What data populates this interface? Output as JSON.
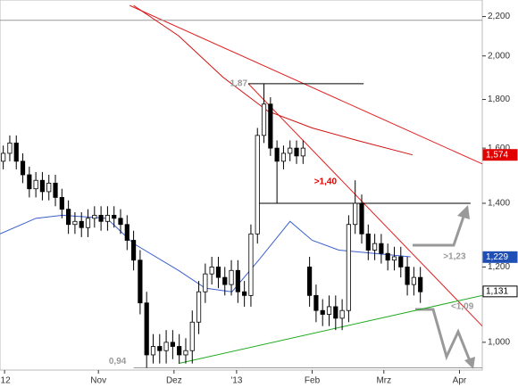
{
  "chart_data": {
    "type": "candlestick",
    "ylog": true,
    "ylim": [
      0.935,
      2.29
    ],
    "xlim": [
      0,
      74
    ],
    "yticks": [
      {
        "value": 1.0,
        "label": "1,000"
      },
      {
        "value": 1.2,
        "label": "1,200"
      },
      {
        "value": 1.4,
        "label": "1,400"
      },
      {
        "value": 1.6,
        "label": "1,600"
      },
      {
        "value": 1.8,
        "label": "1,800"
      },
      {
        "value": 2.0,
        "label": "2,000"
      },
      {
        "value": 2.2,
        "label": "2,200"
      }
    ],
    "xticks": [
      {
        "value": 0.7,
        "label": "'12"
      },
      {
        "value": 15.1,
        "label": "Nov"
      },
      {
        "value": 26.7,
        "label": "Dez"
      },
      {
        "value": 36.3,
        "label": "'13"
      },
      {
        "value": 47.9,
        "label": "Feb"
      },
      {
        "value": 58.9,
        "label": "Mrz"
      },
      {
        "value": 70.5,
        "label": "Apr"
      }
    ],
    "open": [
      1.55,
      1.58,
      1.62,
      1.55,
      1.5,
      1.45,
      1.48,
      1.44,
      1.47,
      1.42,
      1.38,
      1.33,
      1.34,
      1.32,
      1.35,
      1.36,
      1.34,
      1.36,
      1.35,
      1.33,
      1.28,
      1.22,
      1.1,
      0.97,
      0.99,
      0.98,
      1.0,
      0.99,
      0.97,
      0.98,
      1.05,
      1.13,
      1.18,
      1.2,
      1.17,
      1.15,
      1.19,
      1.13,
      1.12,
      1.3,
      1.65,
      1.78,
      1.6,
      1.55,
      1.58,
      1.6,
      1.57,
      1.2,
      1.12,
      1.08,
      1.07,
      1.09,
      1.06,
      1.08,
      1.33,
      1.4,
      1.3,
      1.25,
      1.27,
      1.24,
      1.22,
      1.23,
      1.2,
      1.15,
      1.17
    ],
    "high": [
      1.61,
      1.65,
      1.65,
      1.58,
      1.53,
      1.51,
      1.51,
      1.5,
      1.5,
      1.45,
      1.41,
      1.37,
      1.37,
      1.38,
      1.39,
      1.39,
      1.39,
      1.39,
      1.38,
      1.36,
      1.31,
      1.25,
      1.13,
      1.02,
      1.02,
      1.03,
      1.03,
      1.02,
      1.01,
      1.08,
      1.16,
      1.21,
      1.23,
      1.23,
      1.2,
      1.22,
      1.22,
      1.16,
      1.33,
      1.68,
      1.87,
      1.81,
      1.63,
      1.61,
      1.63,
      1.63,
      1.63,
      1.23,
      1.15,
      1.11,
      1.12,
      1.12,
      1.11,
      1.36,
      1.48,
      1.43,
      1.33,
      1.3,
      1.3,
      1.27,
      1.26,
      1.26,
      1.23,
      1.2,
      1.2
    ],
    "low": [
      1.52,
      1.55,
      1.52,
      1.47,
      1.42,
      1.42,
      1.41,
      1.41,
      1.39,
      1.35,
      1.3,
      1.3,
      1.29,
      1.29,
      1.32,
      1.31,
      1.31,
      1.32,
      1.3,
      1.25,
      1.19,
      1.07,
      0.94,
      0.95,
      0.95,
      0.95,
      0.96,
      0.95,
      0.95,
      0.95,
      1.02,
      1.1,
      1.15,
      1.14,
      1.12,
      1.12,
      1.1,
      1.09,
      1.09,
      1.27,
      1.62,
      1.57,
      1.4,
      1.52,
      1.55,
      1.54,
      1.54,
      1.09,
      1.05,
      1.04,
      1.04,
      1.03,
      1.03,
      1.05,
      1.3,
      1.27,
      1.22,
      1.22,
      1.21,
      1.19,
      1.19,
      1.17,
      1.12,
      1.12,
      1.1
    ],
    "close": [
      1.58,
      1.62,
      1.55,
      1.5,
      1.45,
      1.48,
      1.44,
      1.47,
      1.42,
      1.38,
      1.33,
      1.34,
      1.32,
      1.35,
      1.36,
      1.34,
      1.36,
      1.35,
      1.33,
      1.28,
      1.22,
      1.1,
      0.97,
      0.99,
      0.98,
      1.0,
      0.99,
      0.97,
      0.98,
      1.05,
      1.13,
      1.18,
      1.2,
      1.17,
      1.15,
      1.19,
      1.13,
      1.12,
      1.3,
      1.65,
      1.78,
      1.6,
      1.55,
      1.58,
      1.6,
      1.57,
      1.6,
      1.12,
      1.08,
      1.07,
      1.09,
      1.06,
      1.08,
      1.33,
      1.4,
      1.3,
      1.25,
      1.27,
      1.24,
      1.22,
      1.23,
      1.2,
      1.15,
      1.17,
      1.13
    ],
    "series": [
      {
        "color": "#3a5fcd",
        "x": [
          0,
          5.5,
          9.6,
          16.4,
          20.5,
          27.4,
          31.5,
          35.6,
          39.7,
          44.5,
          47.9,
          52,
          57.5,
          63
        ],
        "values": [
          1.3,
          1.35,
          1.36,
          1.35,
          1.27,
          1.19,
          1.14,
          1.13,
          1.22,
          1.34,
          1.28,
          1.25,
          1.24,
          1.23
        ]
      },
      {
        "color": "#d01010",
        "x": [
          20.5,
          27.4,
          34.2,
          41.1,
          47.9,
          54.8,
          63.3
        ],
        "values": [
          2.26,
          2.1,
          1.9,
          1.75,
          1.68,
          1.63,
          1.574
        ]
      }
    ],
    "trendlines": [
      {
        "color": "#e02020",
        "x": [
          38.1,
          74
        ],
        "values": [
          1.87,
          1.04
        ]
      },
      {
        "color": "#e02020",
        "x": [
          19.9,
          74
        ],
        "values": [
          2.26,
          1.54
        ]
      },
      {
        "color": "#22aa22",
        "x": [
          27.4,
          74
        ],
        "values": [
          0.95,
          1.12
        ]
      },
      {
        "color": "#999999",
        "x": [
          0,
          74
        ],
        "values": [
          2.18,
          2.18
        ]
      },
      {
        "color": "#000000",
        "x": [
          38.1,
          55.8
        ],
        "values": [
          1.87,
          1.87
        ]
      },
      {
        "color": "#000000",
        "x": [
          39.2,
          72.2
        ],
        "values": [
          1.4,
          1.4
        ]
      },
      {
        "color": "#999999",
        "x": [
          20.5,
          74
        ],
        "values": [
          0.94,
          0.94
        ]
      }
    ],
    "price_tags": [
      {
        "value": 1.574,
        "label": "1,574",
        "color": "#e00000"
      },
      {
        "value": 1.229,
        "label": "1,229",
        "color": "#1f4fb4"
      },
      {
        "value": 1.131,
        "label": "1,131",
        "color": "#ffffff"
      }
    ],
    "annotations": [
      {
        "text": "1,87",
        "x": 35.3,
        "y": 1.87,
        "color": "#999999"
      },
      {
        "text": ">1,40",
        "x": 48.2,
        "y": 1.475,
        "color": "#e00000"
      },
      {
        "text": ">1,23",
        "x": 68,
        "y": 1.23,
        "color": "#999999"
      },
      {
        "text": "<1,09",
        "x": 69.2,
        "y": 1.09,
        "color": "#999999"
      },
      {
        "text": "0,94",
        "x": 16.7,
        "y": 0.955,
        "color": "#999999"
      }
    ]
  }
}
